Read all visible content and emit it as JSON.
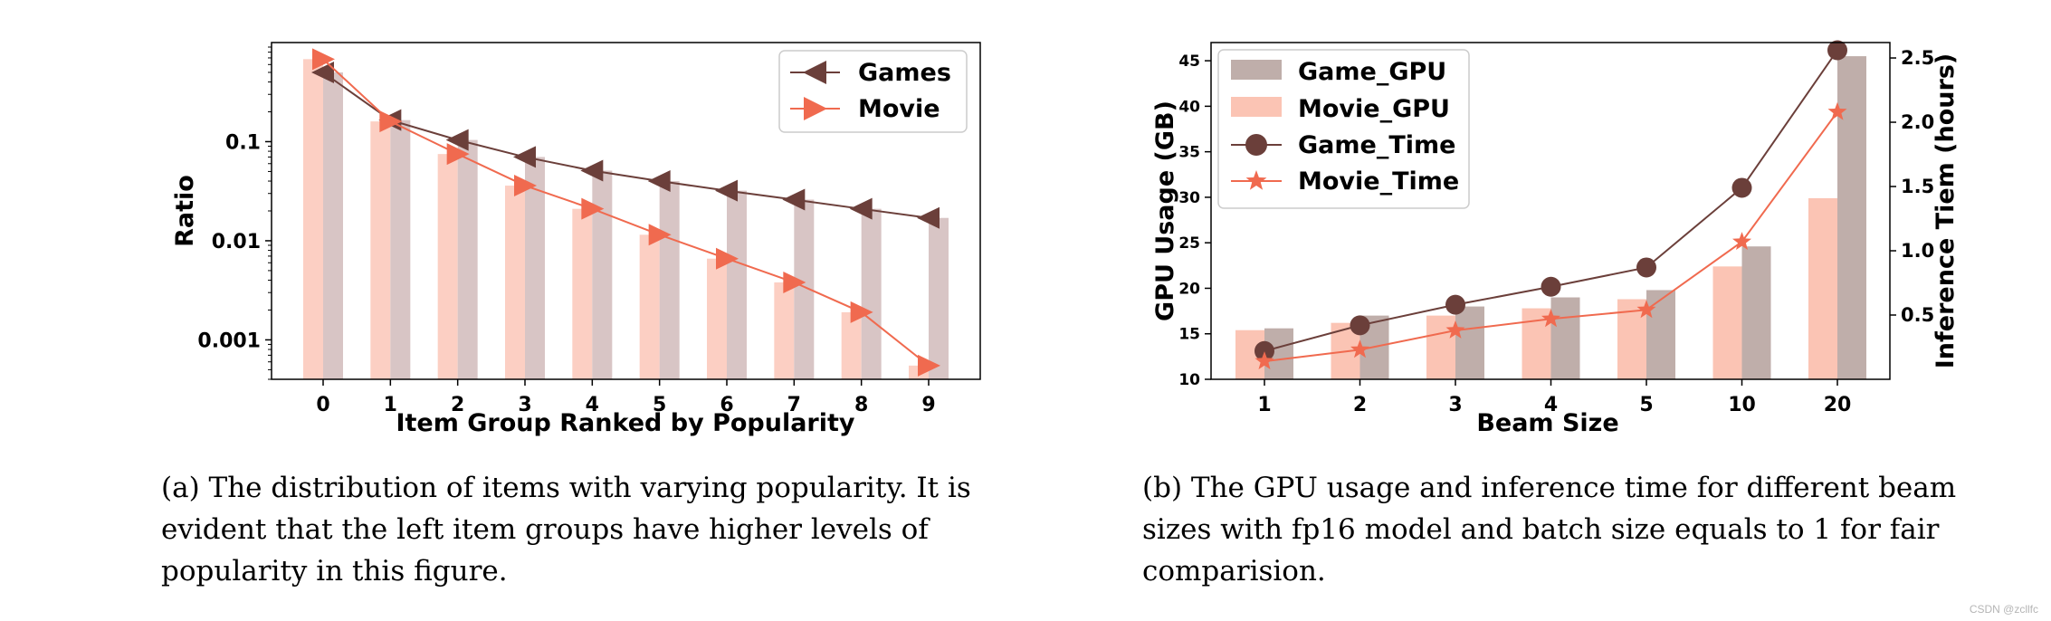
{
  "chart_data": [
    {
      "type": "bar+line",
      "title": "",
      "xlabel": "Item Group Ranked by Popularity",
      "ylabel": "Ratio",
      "yscale": "log",
      "ylim": [
        0.0004,
        1.0
      ],
      "yticks": [
        0.001,
        0.01,
        0.1
      ],
      "ytick_labels": [
        "0.001",
        "0.01",
        "0.1"
      ],
      "categories": [
        "0",
        "1",
        "2",
        "3",
        "4",
        "5",
        "6",
        "7",
        "8",
        "9"
      ],
      "legend_position": "top-right",
      "series": [
        {
          "name": "Games",
          "marker": "triangle-left",
          "color": "#6b3f3a",
          "bar_color": "#d8c5c5",
          "values": [
            0.5,
            0.165,
            0.104,
            0.07,
            0.051,
            0.04,
            0.032,
            0.026,
            0.021,
            0.017
          ]
        },
        {
          "name": "Movie",
          "marker": "triangle-right",
          "color": "#f06a4f",
          "bar_color": "#fccfc3",
          "values": [
            0.68,
            0.16,
            0.075,
            0.036,
            0.021,
            0.0115,
            0.0066,
            0.0038,
            0.0019,
            0.00055
          ]
        }
      ],
      "caption": "(a) The distribution of items with varying popularity. It is evident that the left item groups have higher levels of popularity in this figure."
    },
    {
      "type": "bar+line",
      "title": "",
      "xlabel": "Beam Size",
      "ylabel": "GPU Usage (GB)",
      "y2label": "Inference Tiem (hours)",
      "ylim": [
        10,
        47
      ],
      "yticks": [
        10,
        15,
        20,
        25,
        30,
        35,
        40,
        45
      ],
      "y2lim": [
        0.0,
        2.62
      ],
      "y2ticks": [
        0.5,
        1.0,
        1.5,
        2.0,
        2.5
      ],
      "categories": [
        "1",
        "2",
        "3",
        "4",
        "5",
        "10",
        "20"
      ],
      "legend_position": "top-left",
      "bars": [
        {
          "name": "Game_GPU",
          "color": "#bfaeaa",
          "values": [
            15.6,
            17.0,
            18.0,
            19.0,
            19.8,
            24.6,
            45.5
          ]
        },
        {
          "name": "Movie_GPU",
          "color": "#fbc4b4",
          "values": [
            15.4,
            16.2,
            17.0,
            17.8,
            18.8,
            22.4,
            29.9
          ]
        }
      ],
      "lines": [
        {
          "name": "Game_Time",
          "marker": "circle",
          "color": "#6b3f3a",
          "values": [
            0.22,
            0.42,
            0.58,
            0.72,
            0.87,
            1.49,
            2.56
          ]
        },
        {
          "name": "Movie_Time",
          "marker": "star",
          "color": "#f06a4f",
          "values": [
            0.14,
            0.23,
            0.38,
            0.47,
            0.54,
            1.07,
            2.08
          ]
        }
      ],
      "caption": "(b) The GPU usage and inference time for different beam sizes with fp16 model and batch size equals to 1 for fair comparision."
    }
  ],
  "watermark": "CSDN @zcllfc"
}
